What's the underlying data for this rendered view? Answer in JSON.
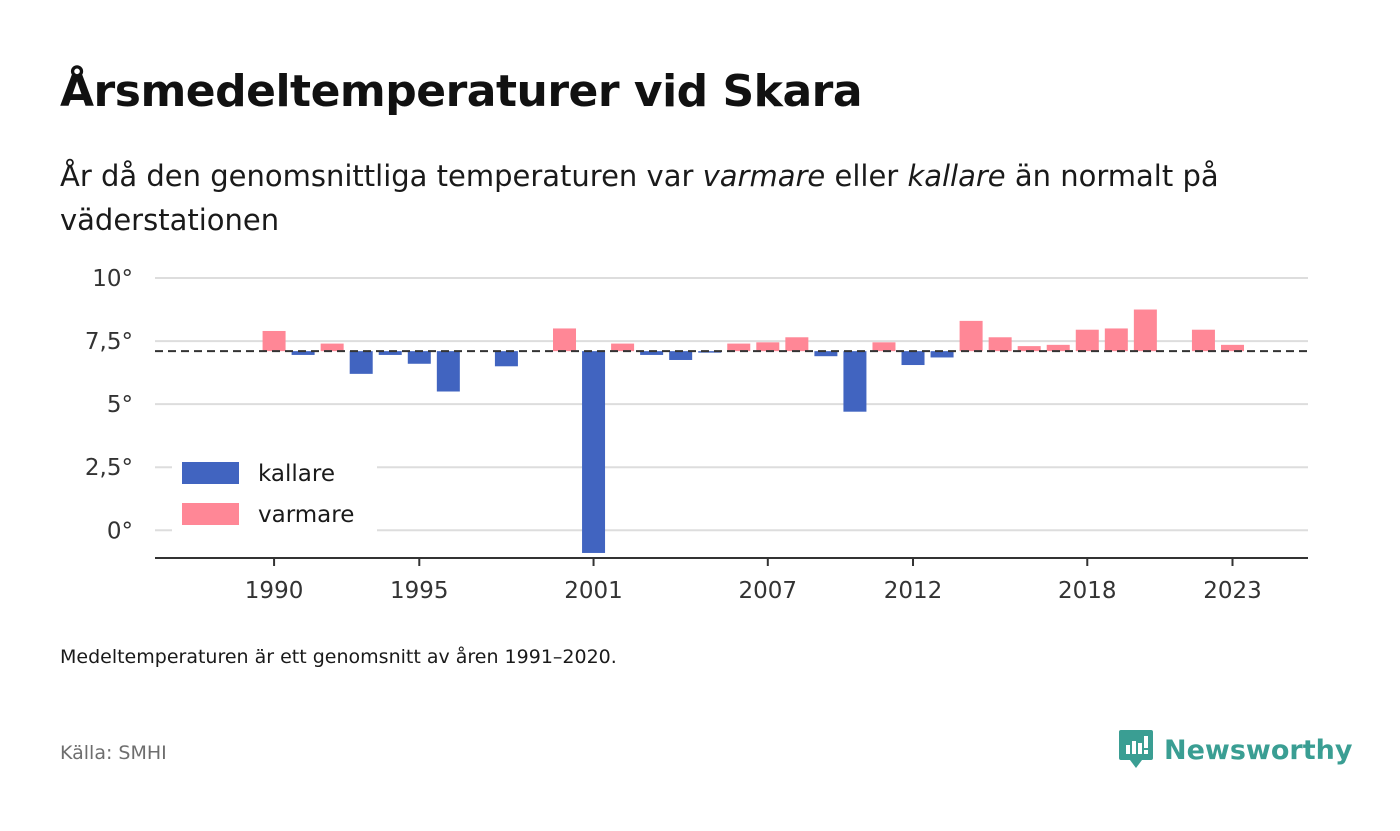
{
  "title": "Årsmedeltemperaturer vid Skara",
  "subtitle": {
    "part1": "År då den genomsnittliga temperaturen var ",
    "em1": "varmare",
    "part2": " eller ",
    "em2": "kallare",
    "part3": " än normalt på väderstationen"
  },
  "note": "Medeltemperaturen är ett genomsnitt av åren 1991–2020.",
  "source": "Källa: SMHI",
  "brand": {
    "name": "Newsworthy",
    "color": "#3a9e93",
    "icon": "newsworthy-logo-icon"
  },
  "colors": {
    "kallare": "#4164c0",
    "varmare": "#ff8796",
    "baseline": "#333333",
    "grid": "#dddddd"
  },
  "chart_data": {
    "type": "bar",
    "baseline": 7.1,
    "ylim": [
      -1.1,
      10
    ],
    "yticks": [
      0,
      2.5,
      5,
      7.5,
      10
    ],
    "ytick_labels": [
      "0°",
      "2,5°",
      "5°",
      "7,5°",
      "10°"
    ],
    "xticks": [
      1990,
      1995,
      2001,
      2007,
      2012,
      2018,
      2023
    ],
    "xtick_labels": [
      "1990",
      "1995",
      "2001",
      "2007",
      "2012",
      "2018",
      "2023"
    ],
    "xlim": [
      1985.9,
      2025.6
    ],
    "legend": [
      {
        "key": "kallare",
        "label": "kallare"
      },
      {
        "key": "varmare",
        "label": "varmare"
      }
    ],
    "legend_position": "bottom-left",
    "grid": true,
    "years": [
      1990,
      1991,
      1992,
      1993,
      1994,
      1995,
      1996,
      1998,
      2000,
      2001,
      2002,
      2003,
      2004,
      2005,
      2006,
      2007,
      2008,
      2009,
      2010,
      2011,
      2012,
      2013,
      2014,
      2015,
      2016,
      2017,
      2018,
      2019,
      2020,
      2022,
      2023
    ],
    "values": [
      7.9,
      6.95,
      7.4,
      6.2,
      6.95,
      6.6,
      5.5,
      6.5,
      8.0,
      -0.9,
      7.4,
      6.95,
      6.75,
      7.05,
      7.4,
      7.45,
      7.65,
      6.9,
      4.7,
      7.45,
      6.55,
      6.85,
      8.3,
      7.65,
      7.3,
      7.35,
      7.95,
      8.0,
      8.75,
      7.95,
      7.35
    ]
  }
}
